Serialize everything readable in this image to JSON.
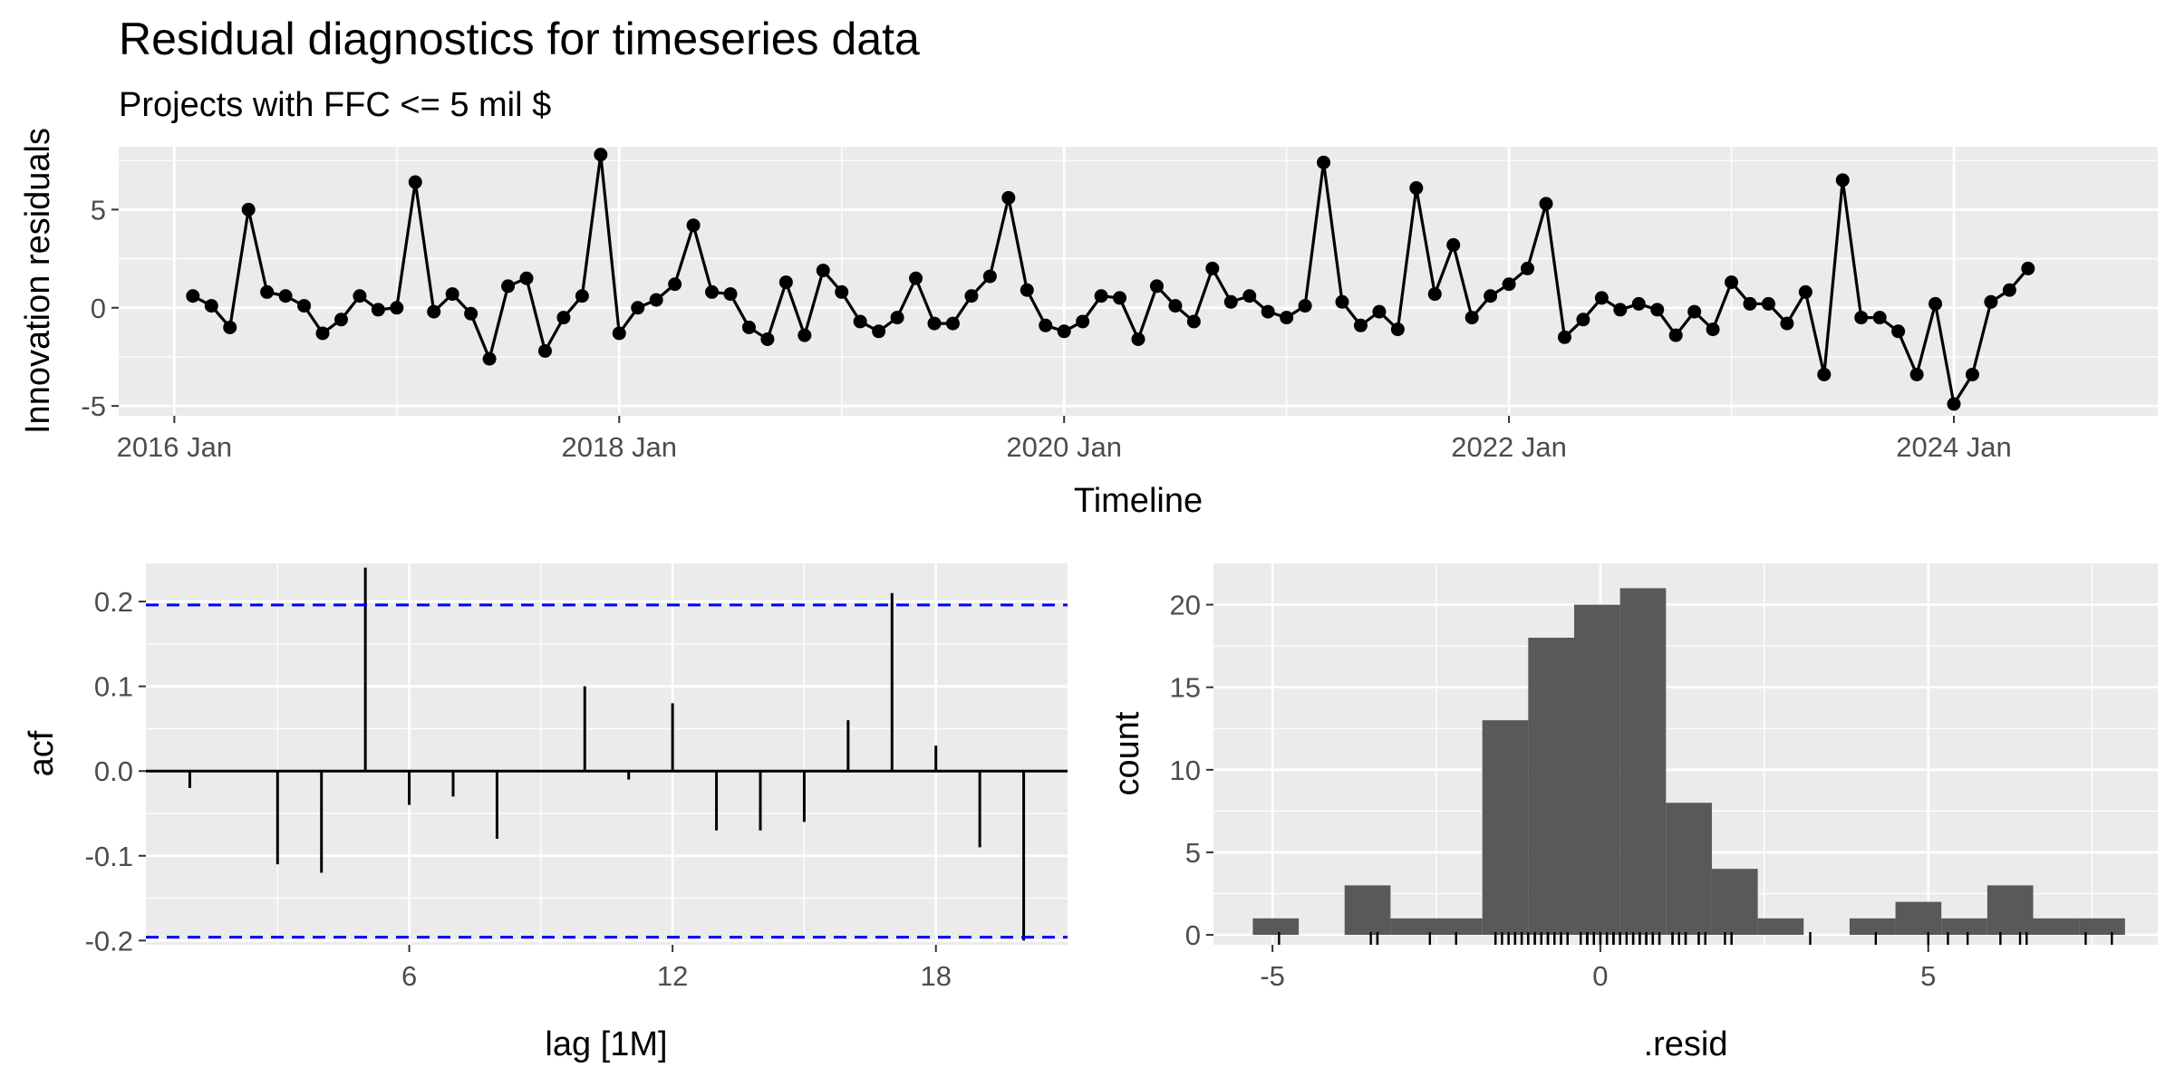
{
  "figure": {
    "title": "Residual diagnostics for timeseries data",
    "subtitle": "Projects with FFC <= 5 mil $"
  },
  "colors": {
    "panel_background": "#ebebeb",
    "grid": "#ffffff",
    "line_points": "#000000",
    "confidence_band": "#0000ff",
    "histogram_fill": "#595959"
  },
  "chart_data": [
    {
      "type": "line",
      "xlabel": "Timeline",
      "ylabel": "Innovation residuals",
      "x_ticks": [
        "2016 Jan",
        "2018 Jan",
        "2020 Jan",
        "2022 Jan",
        "2024 Jan"
      ],
      "y_ticks": [
        -5,
        0,
        5
      ],
      "xlim": [
        "2015-10",
        "2024-12"
      ],
      "ylim": [
        -5.5,
        8.2
      ],
      "grid": true,
      "markers": true,
      "x": [
        "2016-02",
        "2016-03",
        "2016-04",
        "2016-05",
        "2016-06",
        "2016-07",
        "2016-08",
        "2016-09",
        "2016-10",
        "2016-11",
        "2016-12",
        "2017-01",
        "2017-02",
        "2017-03",
        "2017-04",
        "2017-05",
        "2017-06",
        "2017-07",
        "2017-08",
        "2017-09",
        "2017-10",
        "2017-11",
        "2017-12",
        "2018-01",
        "2018-02",
        "2018-03",
        "2018-04",
        "2018-05",
        "2018-06",
        "2018-07",
        "2018-08",
        "2018-09",
        "2018-10",
        "2018-11",
        "2018-12",
        "2019-01",
        "2019-02",
        "2019-03",
        "2019-04",
        "2019-05",
        "2019-06",
        "2019-07",
        "2019-08",
        "2019-09",
        "2019-10",
        "2019-11",
        "2019-12",
        "2020-01",
        "2020-02",
        "2020-03",
        "2020-04",
        "2020-05",
        "2020-06",
        "2020-07",
        "2020-08",
        "2020-09",
        "2020-10",
        "2020-11",
        "2020-12",
        "2021-01",
        "2021-02",
        "2021-03",
        "2021-04",
        "2021-05",
        "2021-06",
        "2021-07",
        "2021-08",
        "2021-09",
        "2021-10",
        "2021-11",
        "2021-12",
        "2022-01",
        "2022-02",
        "2022-03",
        "2022-04",
        "2022-05",
        "2022-06",
        "2022-07",
        "2022-08",
        "2022-09",
        "2022-10",
        "2022-11",
        "2022-12",
        "2023-01",
        "2023-02",
        "2023-03",
        "2023-04",
        "2023-05",
        "2023-06",
        "2023-07",
        "2023-08",
        "2023-09",
        "2023-10",
        "2023-11",
        "2023-12",
        "2024-01",
        "2024-02",
        "2024-03",
        "2024-04",
        "2024-05"
      ],
      "y": [
        0.6,
        0.1,
        -1.0,
        5.0,
        0.8,
        0.6,
        0.1,
        -1.3,
        -0.6,
        0.6,
        -0.1,
        0.0,
        6.4,
        -0.2,
        0.7,
        -0.3,
        -2.6,
        1.1,
        1.5,
        -2.2,
        -0.5,
        0.6,
        7.8,
        -1.3,
        0.0,
        0.4,
        1.2,
        4.2,
        0.8,
        0.7,
        -1.0,
        -1.6,
        1.3,
        -1.4,
        1.9,
        0.8,
        -0.7,
        -1.2,
        -0.5,
        1.5,
        -0.8,
        -0.8,
        0.6,
        1.6,
        5.6,
        0.9,
        -0.9,
        -1.2,
        -0.7,
        0.6,
        0.5,
        -1.6,
        1.1,
        0.1,
        -0.7,
        2.0,
        0.3,
        0.6,
        -0.2,
        -0.5,
        0.1,
        7.4,
        0.3,
        -0.9,
        -0.2,
        -1.1,
        6.1,
        0.7,
        3.2,
        -0.5,
        0.6,
        1.2,
        2.0,
        5.3,
        -1.5,
        -0.6,
        0.5,
        -0.1,
        0.2,
        -0.1,
        -1.4,
        -0.2,
        -1.1,
        1.3,
        0.2,
        0.2,
        -0.8,
        0.8,
        -3.4,
        6.5,
        -0.5,
        -0.5,
        -1.2,
        -3.4,
        0.2,
        -4.9,
        -3.4,
        0.3,
        0.9,
        2.0
      ]
    },
    {
      "type": "bar",
      "xlabel": "lag [1M]",
      "ylabel": "acf",
      "x_ticks": [
        6,
        12,
        18
      ],
      "y_ticks": [
        -0.2,
        -0.1,
        0.0,
        0.1,
        0.2
      ],
      "xlim": [
        0,
        21
      ],
      "ylim": [
        -0.205,
        0.245
      ],
      "confidence_bound": 0.196,
      "lags": [
        1,
        2,
        3,
        4,
        5,
        6,
        7,
        8,
        9,
        10,
        11,
        12,
        13,
        14,
        15,
        16,
        17,
        18,
        19,
        20
      ],
      "values": [
        -0.02,
        0.0,
        -0.11,
        -0.12,
        0.24,
        -0.04,
        -0.03,
        -0.08,
        0.0,
        0.1,
        -0.01,
        0.08,
        -0.07,
        -0.07,
        -0.06,
        0.06,
        0.21,
        0.03,
        -0.09,
        -0.2
      ]
    },
    {
      "type": "bar",
      "xlabel": ".resid",
      "ylabel": "count",
      "x_ticks": [
        -5,
        0,
        5
      ],
      "y_ticks": [
        0,
        5,
        10,
        15,
        20
      ],
      "xlim": [
        -5.9,
        8.5
      ],
      "ylim": [
        -0.6,
        22.5
      ],
      "bin_edges": [
        -5.3,
        -4.6,
        -3.9,
        -3.2,
        -2.5,
        -1.8,
        -1.1,
        -0.4,
        0.3,
        1.0,
        1.7,
        2.4,
        3.1,
        3.8,
        4.5,
        5.2,
        5.9,
        6.6,
        7.3,
        8.0
      ],
      "counts": [
        1,
        0,
        3,
        1,
        1,
        13,
        18,
        20,
        21,
        8,
        4,
        1,
        0,
        1,
        2,
        1,
        3,
        1,
        1
      ],
      "rug": [
        -4.9,
        -3.5,
        -3.4,
        -3.4,
        -2.6,
        -2.2,
        -1.6,
        -1.6,
        -1.5,
        -1.4,
        -1.4,
        -1.3,
        -1.3,
        -1.2,
        -1.2,
        -1.1,
        -1.1,
        -1.0,
        -1.0,
        -0.9,
        -0.9,
        -0.8,
        -0.8,
        -0.8,
        -0.7,
        -0.7,
        -0.7,
        -0.6,
        -0.6,
        -0.5,
        -0.5,
        -0.5,
        -0.5,
        -0.5,
        -0.3,
        -0.2,
        -0.2,
        -0.2,
        -0.2,
        -0.1,
        -0.1,
        -0.1,
        -0.1,
        0.0,
        0.0,
        0.1,
        0.1,
        0.1,
        0.1,
        0.2,
        0.2,
        0.2,
        0.2,
        0.3,
        0.3,
        0.3,
        0.4,
        0.5,
        0.5,
        0.6,
        0.6,
        0.6,
        0.6,
        0.6,
        0.6,
        0.6,
        0.7,
        0.7,
        0.7,
        0.8,
        0.8,
        0.8,
        0.9,
        0.9,
        1.1,
        1.1,
        1.2,
        1.2,
        1.3,
        1.3,
        1.5,
        1.5,
        1.6,
        1.9,
        2.0,
        2.0,
        3.2,
        4.2,
        5.0,
        5.3,
        5.6,
        6.1,
        6.4,
        6.5,
        7.4,
        7.8
      ]
    }
  ]
}
